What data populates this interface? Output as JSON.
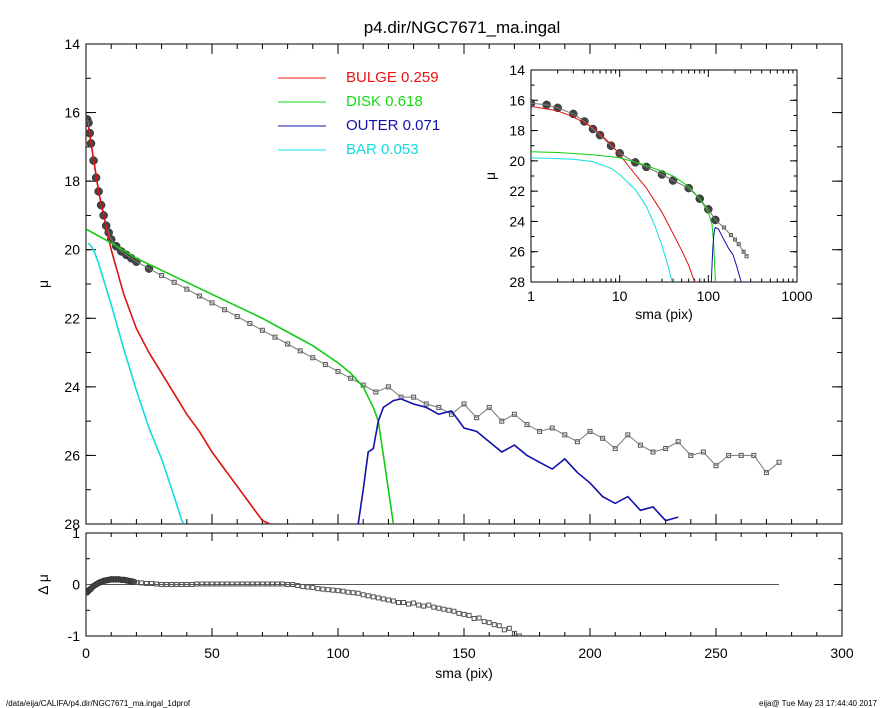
{
  "title": "p4.dir/NGC7671_ma.ingal",
  "footer_left": "/data/eija/CALIFA/p4.dir/NGC7671_ma.ingal_1dprof",
  "footer_right": "eija@  Tue May 23 17:44:40 2017",
  "colors": {
    "bulge": "#dd1111",
    "disk": "#11cc11",
    "outer": "#1111aa",
    "bar": "#11dddd",
    "data": "#555555"
  },
  "legend": [
    {
      "label": "BULGE",
      "value": "0.259",
      "color": "#ee1111",
      "key": "bulge"
    },
    {
      "label": "DISK",
      "value": "0.618",
      "color": "#11dd11",
      "key": "disk"
    },
    {
      "label": "OUTER",
      "value": "0.071",
      "color": "#1111aa",
      "key": "outer"
    },
    {
      "label": "BAR",
      "value": "0.053",
      "color": "#11dddd",
      "key": "bar"
    }
  ],
  "chart_data": [
    {
      "type": "scatter",
      "xlabel": "sma (pix)",
      "ylabel": "μ",
      "xlim": [
        0,
        300
      ],
      "ylim": [
        28,
        14
      ],
      "y_inverted": true,
      "xticks": [
        0,
        50,
        100,
        150,
        200,
        250,
        300
      ],
      "yticks": [
        14,
        16,
        18,
        20,
        22,
        24,
        26,
        28
      ],
      "series": [
        {
          "key": "data",
          "x": [
            0.5,
            1,
            1.5,
            2,
            3,
            4,
            5,
            6,
            7,
            8,
            9,
            10,
            12,
            14,
            16,
            18,
            20,
            25,
            30,
            35,
            40,
            45,
            50,
            55,
            60,
            65,
            70,
            75,
            80,
            85,
            90,
            95,
            100,
            105,
            110,
            115,
            120,
            125,
            130,
            135,
            140,
            145,
            150,
            155,
            160,
            165,
            170,
            175,
            180,
            185,
            190,
            195,
            200,
            205,
            210,
            215,
            220,
            225,
            230,
            235,
            240,
            245,
            250,
            255,
            260,
            265,
            270,
            275
          ],
          "y": [
            16.2,
            16.3,
            16.6,
            16.9,
            17.4,
            17.9,
            18.3,
            18.7,
            19.0,
            19.3,
            19.5,
            19.7,
            19.9,
            20.05,
            20.15,
            20.25,
            20.35,
            20.55,
            20.75,
            20.95,
            21.15,
            21.35,
            21.55,
            21.75,
            21.95,
            22.15,
            22.35,
            22.55,
            22.75,
            22.95,
            23.15,
            23.35,
            23.55,
            23.75,
            23.95,
            24.15,
            24.0,
            24.3,
            24.3,
            24.5,
            24.6,
            24.8,
            24.5,
            24.9,
            24.6,
            25.0,
            24.8,
            25.1,
            25.3,
            25.2,
            25.4,
            25.6,
            25.3,
            25.5,
            25.8,
            25.4,
            25.7,
            25.9,
            25.8,
            25.6,
            26.0,
            25.9,
            26.3,
            26.0,
            26.0,
            26.0,
            26.5,
            26.2
          ]
        },
        {
          "key": "bulge",
          "x": [
            1,
            5,
            10,
            15,
            20,
            25,
            30,
            35,
            40,
            45,
            50,
            55,
            60,
            65,
            70,
            73
          ],
          "y": [
            16.4,
            18.3,
            20.0,
            21.3,
            22.3,
            23.0,
            23.6,
            24.2,
            24.8,
            25.3,
            25.9,
            26.4,
            26.9,
            27.4,
            27.9,
            28.0
          ]
        },
        {
          "key": "disk",
          "x": [
            0,
            10,
            20,
            30,
            40,
            50,
            60,
            70,
            80,
            90,
            100,
            105,
            110,
            114,
            116,
            118,
            120,
            122
          ],
          "y": [
            19.4,
            19.8,
            20.25,
            20.6,
            20.95,
            21.3,
            21.65,
            22.0,
            22.4,
            22.8,
            23.3,
            23.6,
            24.0,
            24.6,
            25.0,
            26.0,
            27.0,
            28.0
          ]
        },
        {
          "key": "outer",
          "x": [
            108,
            110,
            112,
            114,
            116,
            118,
            120,
            122,
            125,
            130,
            135,
            140,
            145,
            148,
            150,
            155,
            160,
            165,
            170,
            175,
            180,
            185,
            190,
            195,
            200,
            205,
            210,
            215,
            220,
            225,
            230,
            235
          ],
          "y": [
            28.0,
            27.0,
            25.9,
            25.8,
            25.0,
            24.6,
            24.5,
            24.4,
            24.35,
            24.5,
            24.6,
            24.8,
            24.7,
            25.0,
            25.2,
            25.3,
            25.6,
            25.9,
            25.7,
            26.0,
            26.2,
            26.4,
            26.1,
            26.5,
            26.8,
            27.2,
            27.4,
            27.2,
            27.6,
            27.5,
            27.9,
            27.8
          ]
        },
        {
          "key": "bar",
          "x": [
            1,
            3,
            5,
            10,
            15,
            20,
            25,
            30,
            35,
            38,
            39
          ],
          "y": [
            19.8,
            20.0,
            20.4,
            21.6,
            22.9,
            24.1,
            25.2,
            26.1,
            27.2,
            27.9,
            28.0
          ]
        }
      ]
    },
    {
      "type": "scatter",
      "xlabel": "sma (pix)",
      "ylabel": "μ",
      "xlim": [
        1,
        1000
      ],
      "xscale": "log",
      "ylim": [
        28,
        14
      ],
      "y_inverted": true,
      "xticks": [
        1,
        10,
        100,
        1000
      ],
      "yticks": [
        14,
        16,
        18,
        20,
        22,
        24,
        26,
        28
      ],
      "series": [
        {
          "key": "data",
          "x": [
            1,
            1.5,
            2,
            3,
            4,
            5,
            6,
            8,
            10,
            15,
            20,
            30,
            40,
            60,
            80,
            100,
            120,
            150,
            180,
            200,
            220,
            250,
            270
          ],
          "y": [
            16.2,
            16.3,
            16.5,
            16.9,
            17.4,
            17.9,
            18.3,
            19.0,
            19.5,
            20.1,
            20.4,
            20.9,
            21.3,
            21.8,
            22.5,
            23.2,
            23.9,
            24.4,
            24.9,
            25.2,
            25.5,
            26.0,
            26.3
          ]
        },
        {
          "key": "bulge",
          "x": [
            1,
            2,
            3,
            5,
            8,
            10,
            15,
            20,
            30,
            40,
            50,
            60,
            70
          ],
          "y": [
            16.4,
            16.7,
            17.1,
            17.8,
            18.9,
            19.6,
            20.9,
            21.8,
            23.4,
            24.8,
            25.9,
            26.9,
            28.0
          ]
        },
        {
          "key": "disk",
          "x": [
            1,
            2,
            5,
            10,
            20,
            40,
            60,
            80,
            100,
            110,
            115,
            120
          ],
          "y": [
            19.4,
            19.45,
            19.6,
            19.8,
            20.3,
            21.0,
            21.7,
            22.5,
            23.4,
            24.2,
            25.5,
            28.0
          ]
        },
        {
          "key": "outer",
          "x": [
            108,
            112,
            115,
            118,
            120,
            130,
            150,
            170,
            190,
            210,
            235
          ],
          "y": [
            28.0,
            25.9,
            25.0,
            24.5,
            24.4,
            24.5,
            25.2,
            25.8,
            26.2,
            27.0,
            28.0
          ]
        },
        {
          "key": "bar",
          "x": [
            1,
            2,
            3,
            5,
            8,
            10,
            15,
            20,
            25,
            30,
            35,
            39
          ],
          "y": [
            19.8,
            19.85,
            19.9,
            20.05,
            20.5,
            20.9,
            21.9,
            23.0,
            24.3,
            25.6,
            26.9,
            28.0
          ]
        }
      ]
    },
    {
      "type": "scatter",
      "xlabel": "sma (pix)",
      "ylabel": "Δ μ",
      "xlim": [
        0,
        300
      ],
      "ylim": [
        -1,
        1
      ],
      "xticks": [
        0,
        50,
        100,
        150,
        200,
        250,
        300
      ],
      "yticks": [
        -1,
        0,
        1
      ],
      "zero_line_x": [
        0,
        275
      ],
      "series": [
        {
          "key": "residual",
          "x": [
            0.5,
            1,
            1.5,
            2,
            3,
            4,
            5,
            6,
            7,
            8,
            9,
            10,
            11,
            12,
            13,
            14,
            15,
            16,
            17,
            18,
            19,
            20,
            22,
            24,
            26,
            28,
            30,
            32,
            34,
            36,
            38,
            40,
            42,
            44,
            46,
            48,
            50,
            52,
            54,
            56,
            58,
            60,
            62,
            64,
            66,
            68,
            70,
            72,
            74,
            76,
            78,
            80,
            82,
            84,
            86,
            88,
            90,
            92,
            94,
            96,
            98,
            100,
            102,
            104,
            106,
            108,
            110,
            112,
            114,
            116,
            118,
            120,
            122,
            124,
            126,
            128,
            130,
            132,
            134,
            136,
            138,
            140,
            142,
            144,
            146,
            148,
            150,
            152,
            154,
            156,
            158,
            160,
            162,
            164,
            166,
            168,
            170,
            172
          ],
          "y": [
            -0.15,
            -0.12,
            -0.1,
            -0.08,
            -0.03,
            0.0,
            0.03,
            0.05,
            0.07,
            0.08,
            0.09,
            0.1,
            0.1,
            0.1,
            0.1,
            0.09,
            0.09,
            0.08,
            0.07,
            0.06,
            0.05,
            0.04,
            0.03,
            0.02,
            0.02,
            0.01,
            0.0,
            0.0,
            0.0,
            0.0,
            0.0,
            0.0,
            0.0,
            0.01,
            0.01,
            0.01,
            0.01,
            0.01,
            0.01,
            0.01,
            0.01,
            0.01,
            0.01,
            0.01,
            0.01,
            0.01,
            0.01,
            0.01,
            0.01,
            0.01,
            0.01,
            0.0,
            0.0,
            -0.02,
            -0.04,
            -0.05,
            -0.06,
            -0.08,
            -0.09,
            -0.1,
            -0.11,
            -0.12,
            -0.13,
            -0.15,
            -0.16,
            -0.17,
            -0.2,
            -0.22,
            -0.24,
            -0.26,
            -0.28,
            -0.3,
            -0.32,
            -0.35,
            -0.35,
            -0.38,
            -0.36,
            -0.4,
            -0.42,
            -0.4,
            -0.44,
            -0.46,
            -0.48,
            -0.5,
            -0.52,
            -0.56,
            -0.58,
            -0.6,
            -0.66,
            -0.65,
            -0.72,
            -0.74,
            -0.78,
            -0.8,
            -0.88,
            -0.85,
            -0.95,
            -1.0
          ]
        }
      ]
    }
  ]
}
